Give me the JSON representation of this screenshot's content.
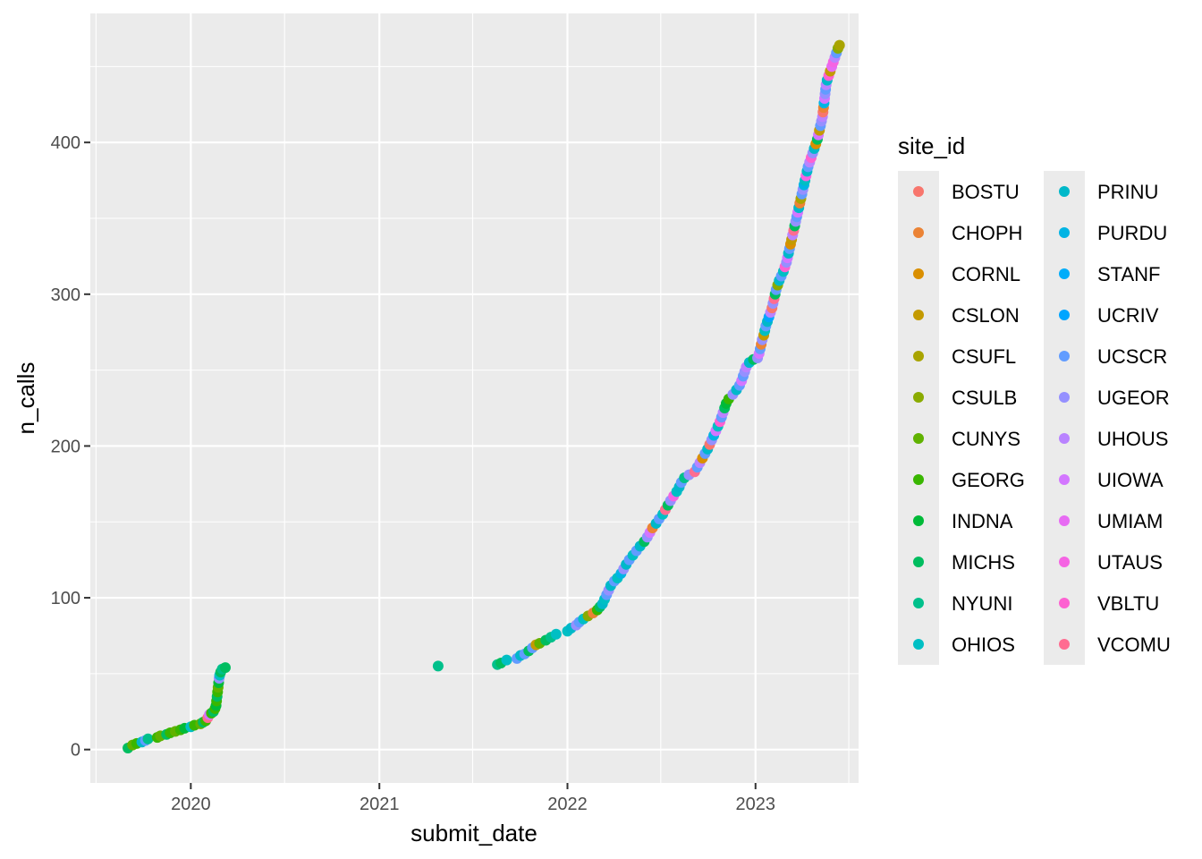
{
  "chart_data": {
    "type": "scatter",
    "title": "",
    "xlabel": "submit_date",
    "ylabel": "n_calls",
    "x_ticks": [
      "2020",
      "2021",
      "2022",
      "2023"
    ],
    "y_ticks": [
      0,
      100,
      200,
      300,
      400
    ],
    "xlim": [
      "2019-06-20",
      "2023-07-20"
    ],
    "ylim": [
      -22,
      485
    ],
    "grid": true,
    "legend": {
      "title": "site_id",
      "placement": "right",
      "entries": [
        {
          "name": "BOSTU",
          "color": "#F8766D"
        },
        {
          "name": "CHOPH",
          "color": "#EB8335"
        },
        {
          "name": "CORNL",
          "color": "#DA8F00"
        },
        {
          "name": "CSLON",
          "color": "#C49A00"
        },
        {
          "name": "CSUFL",
          "color": "#A9A400"
        },
        {
          "name": "CSULB",
          "color": "#8AAB00"
        },
        {
          "name": "CUNYS",
          "color": "#60B200"
        },
        {
          "name": "GEORG",
          "color": "#39B600"
        },
        {
          "name": "INDNA",
          "color": "#00BA38"
        },
        {
          "name": "MICHS",
          "color": "#00BD5F"
        },
        {
          "name": "NYUNI",
          "color": "#00C08B"
        },
        {
          "name": "OHIOS",
          "color": "#00BFC4"
        },
        {
          "name": "PRINU",
          "color": "#00B8C9"
        },
        {
          "name": "PURDU",
          "color": "#00B4E4"
        },
        {
          "name": "STANF",
          "color": "#00ADFA"
        },
        {
          "name": "UCRIV",
          "color": "#00A5FF"
        },
        {
          "name": "UCSCR",
          "color": "#619CFF"
        },
        {
          "name": "UGEOR",
          "color": "#9590FF"
        },
        {
          "name": "UHOUS",
          "color": "#B983FF"
        },
        {
          "name": "UIOWA",
          "color": "#D376FF"
        },
        {
          "name": "UMIAM",
          "color": "#E76BF3"
        },
        {
          "name": "UTAUS",
          "color": "#F564E3"
        },
        {
          "name": "VBLTU",
          "color": "#FD61D1"
        },
        {
          "name": "VCOMU",
          "color": "#FF6C91"
        }
      ]
    },
    "points": [
      {
        "x": "2019-09-01",
        "y": 1,
        "site": "MICHS"
      },
      {
        "x": "2019-09-10",
        "y": 3,
        "site": "CUNYS"
      },
      {
        "x": "2019-09-18",
        "y": 4,
        "site": "GEORG"
      },
      {
        "x": "2019-09-28",
        "y": 5,
        "site": "PRINU"
      },
      {
        "x": "2019-10-05",
        "y": 6,
        "site": "UCSCR"
      },
      {
        "x": "2019-10-10",
        "y": 7,
        "site": "NYUNI"
      },
      {
        "x": "2019-10-28",
        "y": 8,
        "site": "GEORG"
      },
      {
        "x": "2019-11-03",
        "y": 9,
        "site": "CUNYS"
      },
      {
        "x": "2019-11-15",
        "y": 10,
        "site": "MICHS"
      },
      {
        "x": "2019-11-22",
        "y": 11,
        "site": "GEORG"
      },
      {
        "x": "2019-12-02",
        "y": 12,
        "site": "CUNYS"
      },
      {
        "x": "2019-12-12",
        "y": 13,
        "site": "GEORG"
      },
      {
        "x": "2019-12-20",
        "y": 14,
        "site": "INDNA"
      },
      {
        "x": "2020-01-01",
        "y": 15,
        "site": "OHIOS"
      },
      {
        "x": "2020-01-08",
        "y": 16,
        "site": "GEORG"
      },
      {
        "x": "2020-01-20",
        "y": 17,
        "site": "CUNYS"
      },
      {
        "x": "2020-01-25",
        "y": 18,
        "site": "MICHS"
      },
      {
        "x": "2020-01-30",
        "y": 19,
        "site": "GEORG"
      },
      {
        "x": "2020-02-03",
        "y": 21,
        "site": "VCOMU"
      },
      {
        "x": "2020-02-06",
        "y": 23,
        "site": "UIOWA"
      },
      {
        "x": "2020-02-10",
        "y": 24,
        "site": "GEORG"
      },
      {
        "x": "2020-02-14",
        "y": 25,
        "site": "MICHS"
      },
      {
        "x": "2020-02-17",
        "y": 27,
        "site": "GEORG"
      },
      {
        "x": "2020-02-19",
        "y": 29,
        "site": "INDNA"
      },
      {
        "x": "2020-02-20",
        "y": 32,
        "site": "GEORG"
      },
      {
        "x": "2020-02-21",
        "y": 35,
        "site": "MICHS"
      },
      {
        "x": "2020-02-22",
        "y": 38,
        "site": "GEORG"
      },
      {
        "x": "2020-02-23",
        "y": 41,
        "site": "CUNYS"
      },
      {
        "x": "2020-02-24",
        "y": 44,
        "site": "INDNA"
      },
      {
        "x": "2020-02-25",
        "y": 47,
        "site": "UGEOR"
      },
      {
        "x": "2020-02-26",
        "y": 49,
        "site": "OHIOS"
      },
      {
        "x": "2020-02-28",
        "y": 51,
        "site": "MICHS"
      },
      {
        "x": "2020-03-02",
        "y": 53,
        "site": "NYUNI"
      },
      {
        "x": "2020-03-08",
        "y": 54,
        "site": "MICHS"
      },
      {
        "x": "2021-04-25",
        "y": 55,
        "site": "NYUNI"
      },
      {
        "x": "2021-08-18",
        "y": 56,
        "site": "NYUNI"
      },
      {
        "x": "2021-08-25",
        "y": 57,
        "site": "MICHS"
      },
      {
        "x": "2021-09-05",
        "y": 59,
        "site": "OHIOS"
      },
      {
        "x": "2021-09-25",
        "y": 60,
        "site": "UCSCR"
      },
      {
        "x": "2021-10-02",
        "y": 62,
        "site": "PRINU"
      },
      {
        "x": "2021-10-10",
        "y": 63,
        "site": "UCSCR"
      },
      {
        "x": "2021-10-18",
        "y": 65,
        "site": "MICHS"
      },
      {
        "x": "2021-10-25",
        "y": 67,
        "site": "UCSCR"
      },
      {
        "x": "2021-11-01",
        "y": 69,
        "site": "CSLON"
      },
      {
        "x": "2021-11-08",
        "y": 70,
        "site": "CUNYS"
      },
      {
        "x": "2021-11-20",
        "y": 72,
        "site": "MICHS"
      },
      {
        "x": "2021-11-30",
        "y": 74,
        "site": "NYUNI"
      },
      {
        "x": "2021-12-10",
        "y": 76,
        "site": "OHIOS"
      },
      {
        "x": "2022-01-01",
        "y": 78,
        "site": "OHIOS"
      },
      {
        "x": "2022-01-08",
        "y": 80,
        "site": "PRINU"
      },
      {
        "x": "2022-01-18",
        "y": 82,
        "site": "UGEOR"
      },
      {
        "x": "2022-01-24",
        "y": 84,
        "site": "UCSCR"
      },
      {
        "x": "2022-02-01",
        "y": 86,
        "site": "OHIOS"
      },
      {
        "x": "2022-02-10",
        "y": 88,
        "site": "CSULB"
      },
      {
        "x": "2022-02-20",
        "y": 90,
        "site": "CHOPH"
      },
      {
        "x": "2022-02-28",
        "y": 92,
        "site": "GEORG"
      },
      {
        "x": "2022-03-05",
        "y": 94,
        "site": "MICHS"
      },
      {
        "x": "2022-03-10",
        "y": 96,
        "site": "PRINU"
      },
      {
        "x": "2022-03-14",
        "y": 99,
        "site": "OHIOS"
      },
      {
        "x": "2022-03-18",
        "y": 102,
        "site": "UCSCR"
      },
      {
        "x": "2022-03-22",
        "y": 105,
        "site": "UGEOR"
      },
      {
        "x": "2022-03-26",
        "y": 108,
        "site": "PRINU"
      },
      {
        "x": "2022-04-02",
        "y": 111,
        "site": "UCSCR"
      },
      {
        "x": "2022-04-08",
        "y": 113,
        "site": "OHIOS"
      },
      {
        "x": "2022-04-15",
        "y": 116,
        "site": "PURDU"
      },
      {
        "x": "2022-04-20",
        "y": 119,
        "site": "UGEOR"
      },
      {
        "x": "2022-04-25",
        "y": 122,
        "site": "PRINU"
      },
      {
        "x": "2022-05-01",
        "y": 125,
        "site": "UCSCR"
      },
      {
        "x": "2022-05-08",
        "y": 128,
        "site": "OHIOS"
      },
      {
        "x": "2022-05-15",
        "y": 131,
        "site": "UCSCR"
      },
      {
        "x": "2022-05-22",
        "y": 134,
        "site": "PRINU"
      },
      {
        "x": "2022-05-30",
        "y": 137,
        "site": "MICHS"
      },
      {
        "x": "2022-06-05",
        "y": 140,
        "site": "UGEOR"
      },
      {
        "x": "2022-06-10",
        "y": 143,
        "site": "UIOWA"
      },
      {
        "x": "2022-06-15",
        "y": 146,
        "site": "CHOPH"
      },
      {
        "x": "2022-06-22",
        "y": 149,
        "site": "PRINU"
      },
      {
        "x": "2022-06-28",
        "y": 152,
        "site": "UCSCR"
      },
      {
        "x": "2022-07-05",
        "y": 155,
        "site": "OHIOS"
      },
      {
        "x": "2022-07-10",
        "y": 158,
        "site": "VCOMU"
      },
      {
        "x": "2022-07-15",
        "y": 161,
        "site": "MICHS"
      },
      {
        "x": "2022-07-20",
        "y": 164,
        "site": "UGEOR"
      },
      {
        "x": "2022-07-26",
        "y": 167,
        "site": "UTAUS"
      },
      {
        "x": "2022-08-01",
        "y": 170,
        "site": "OHIOS"
      },
      {
        "x": "2022-08-06",
        "y": 173,
        "site": "PRINU"
      },
      {
        "x": "2022-08-10",
        "y": 176,
        "site": "UCSCR"
      },
      {
        "x": "2022-08-16",
        "y": 179,
        "site": "NYUNI"
      },
      {
        "x": "2022-08-25",
        "y": 181,
        "site": "UGEOR"
      },
      {
        "x": "2022-09-05",
        "y": 183,
        "site": "VCOMU"
      },
      {
        "x": "2022-09-10",
        "y": 186,
        "site": "UCSCR"
      },
      {
        "x": "2022-09-15",
        "y": 189,
        "site": "UHOUS"
      },
      {
        "x": "2022-09-20",
        "y": 192,
        "site": "CORNL"
      },
      {
        "x": "2022-09-25",
        "y": 195,
        "site": "UCSCR"
      },
      {
        "x": "2022-09-30",
        "y": 198,
        "site": "PRINU"
      },
      {
        "x": "2022-10-04",
        "y": 201,
        "site": "BOSTU"
      },
      {
        "x": "2022-10-08",
        "y": 204,
        "site": "UGEOR"
      },
      {
        "x": "2022-10-12",
        "y": 207,
        "site": "PURDU"
      },
      {
        "x": "2022-10-16",
        "y": 210,
        "site": "UIOWA"
      },
      {
        "x": "2022-10-20",
        "y": 213,
        "site": "OHIOS"
      },
      {
        "x": "2022-10-24",
        "y": 216,
        "site": "VBLTU"
      },
      {
        "x": "2022-10-27",
        "y": 219,
        "site": "UCSCR"
      },
      {
        "x": "2022-10-30",
        "y": 222,
        "site": "UHOUS"
      },
      {
        "x": "2022-11-02",
        "y": 225,
        "site": "MICHS"
      },
      {
        "x": "2022-11-05",
        "y": 228,
        "site": "INDNA"
      },
      {
        "x": "2022-11-10",
        "y": 231,
        "site": "GEORG"
      },
      {
        "x": "2022-11-18",
        "y": 234,
        "site": "UGEOR"
      },
      {
        "x": "2022-11-25",
        "y": 237,
        "site": "PRINU"
      },
      {
        "x": "2022-12-01",
        "y": 240,
        "site": "UCSCR"
      },
      {
        "x": "2022-12-05",
        "y": 243,
        "site": "UIOWA"
      },
      {
        "x": "2022-12-08",
        "y": 246,
        "site": "UCSCR"
      },
      {
        "x": "2022-12-11",
        "y": 249,
        "site": "UGEOR"
      },
      {
        "x": "2022-12-14",
        "y": 252,
        "site": "UHOUS"
      },
      {
        "x": "2022-12-20",
        "y": 255,
        "site": "PRINU"
      },
      {
        "x": "2022-12-28",
        "y": 257,
        "site": "MICHS"
      },
      {
        "x": "2023-01-05",
        "y": 258,
        "site": "UGEOR"
      },
      {
        "x": "2023-01-08",
        "y": 261,
        "site": "UIOWA"
      },
      {
        "x": "2023-01-10",
        "y": 264,
        "site": "UCSCR"
      },
      {
        "x": "2023-01-12",
        "y": 267,
        "site": "CHOPH"
      },
      {
        "x": "2023-01-14",
        "y": 270,
        "site": "UGEOR"
      },
      {
        "x": "2023-01-17",
        "y": 273,
        "site": "CSLON"
      },
      {
        "x": "2023-01-19",
        "y": 276,
        "site": "OHIOS"
      },
      {
        "x": "2023-01-21",
        "y": 279,
        "site": "UCSCR"
      },
      {
        "x": "2023-01-24",
        "y": 282,
        "site": "PRINU"
      },
      {
        "x": "2023-01-27",
        "y": 285,
        "site": "UCRIV"
      },
      {
        "x": "2023-01-30",
        "y": 288,
        "site": "UHOUS"
      },
      {
        "x": "2023-02-02",
        "y": 291,
        "site": "BOSTU"
      },
      {
        "x": "2023-02-04",
        "y": 294,
        "site": "UGEOR"
      },
      {
        "x": "2023-02-06",
        "y": 297,
        "site": "VCOMU"
      },
      {
        "x": "2023-02-08",
        "y": 300,
        "site": "MICHS"
      },
      {
        "x": "2023-02-10",
        "y": 303,
        "site": "UCSCR"
      },
      {
        "x": "2023-02-13",
        "y": 306,
        "site": "CSULB"
      },
      {
        "x": "2023-02-16",
        "y": 309,
        "site": "PRINU"
      },
      {
        "x": "2023-02-20",
        "y": 312,
        "site": "UCSCR"
      },
      {
        "x": "2023-02-24",
        "y": 315,
        "site": "OHIOS"
      },
      {
        "x": "2023-02-27",
        "y": 318,
        "site": "VBLTU"
      },
      {
        "x": "2023-03-02",
        "y": 321,
        "site": "UGEOR"
      },
      {
        "x": "2023-03-04",
        "y": 324,
        "site": "UIOWA"
      },
      {
        "x": "2023-03-06",
        "y": 327,
        "site": "PRINU"
      },
      {
        "x": "2023-03-08",
        "y": 330,
        "site": "UCSCR"
      },
      {
        "x": "2023-03-10",
        "y": 333,
        "site": "CORNL"
      },
      {
        "x": "2023-03-12",
        "y": 336,
        "site": "CSLON"
      },
      {
        "x": "2023-03-14",
        "y": 339,
        "site": "UHOUS"
      },
      {
        "x": "2023-03-16",
        "y": 342,
        "site": "VCOMU"
      },
      {
        "x": "2023-03-18",
        "y": 345,
        "site": "MICHS"
      },
      {
        "x": "2023-03-20",
        "y": 348,
        "site": "UGEOR"
      },
      {
        "x": "2023-03-22",
        "y": 351,
        "site": "UCSCR"
      },
      {
        "x": "2023-03-24",
        "y": 354,
        "site": "UIOWA"
      },
      {
        "x": "2023-03-26",
        "y": 357,
        "site": "PRINU"
      },
      {
        "x": "2023-03-28",
        "y": 360,
        "site": "CHOPH"
      },
      {
        "x": "2023-03-30",
        "y": 363,
        "site": "CSUFL"
      },
      {
        "x": "2023-04-01",
        "y": 366,
        "site": "UCSCR"
      },
      {
        "x": "2023-04-03",
        "y": 369,
        "site": "UGEOR"
      },
      {
        "x": "2023-04-05",
        "y": 372,
        "site": "PURDU"
      },
      {
        "x": "2023-04-07",
        "y": 375,
        "site": "OHIOS"
      },
      {
        "x": "2023-04-09",
        "y": 378,
        "site": "UTAUS"
      },
      {
        "x": "2023-04-11",
        "y": 381,
        "site": "PRINU"
      },
      {
        "x": "2023-04-13",
        "y": 384,
        "site": "UCSCR"
      },
      {
        "x": "2023-04-16",
        "y": 387,
        "site": "UHOUS"
      },
      {
        "x": "2023-04-19",
        "y": 390,
        "site": "VBLTU"
      },
      {
        "x": "2023-04-22",
        "y": 393,
        "site": "UGEOR"
      },
      {
        "x": "2023-04-25",
        "y": 396,
        "site": "PRINU"
      },
      {
        "x": "2023-04-28",
        "y": 399,
        "site": "CORNL"
      },
      {
        "x": "2023-05-01",
        "y": 402,
        "site": "MICHS"
      },
      {
        "x": "2023-05-03",
        "y": 405,
        "site": "UIOWA"
      },
      {
        "x": "2023-05-05",
        "y": 408,
        "site": "CSLON"
      },
      {
        "x": "2023-05-07",
        "y": 411,
        "site": "UCSCR"
      },
      {
        "x": "2023-05-09",
        "y": 414,
        "site": "UGEOR"
      },
      {
        "x": "2023-05-11",
        "y": 417,
        "site": "UHOUS"
      },
      {
        "x": "2023-05-12",
        "y": 420,
        "site": "BOSTU"
      },
      {
        "x": "2023-05-13",
        "y": 423,
        "site": "CHOPH"
      },
      {
        "x": "2023-05-14",
        "y": 426,
        "site": "PURDU"
      },
      {
        "x": "2023-05-15",
        "y": 429,
        "site": "UIOWA"
      },
      {
        "x": "2023-05-16",
        "y": 432,
        "site": "UGEOR"
      },
      {
        "x": "2023-05-17",
        "y": 435,
        "site": "UCSCR"
      },
      {
        "x": "2023-05-18",
        "y": 438,
        "site": "UHOUS"
      },
      {
        "x": "2023-05-20",
        "y": 441,
        "site": "PRINU"
      },
      {
        "x": "2023-05-23",
        "y": 444,
        "site": "VBLTU"
      },
      {
        "x": "2023-05-26",
        "y": 447,
        "site": "CSLON"
      },
      {
        "x": "2023-05-29",
        "y": 450,
        "site": "UMIAM"
      },
      {
        "x": "2023-06-01",
        "y": 453,
        "site": "UTAUS"
      },
      {
        "x": "2023-06-04",
        "y": 456,
        "site": "UHOUS"
      },
      {
        "x": "2023-06-07",
        "y": 459,
        "site": "UCSCR"
      },
      {
        "x": "2023-06-10",
        "y": 462,
        "site": "CSULB"
      },
      {
        "x": "2023-06-13",
        "y": 464,
        "site": "CSUFL"
      }
    ]
  }
}
